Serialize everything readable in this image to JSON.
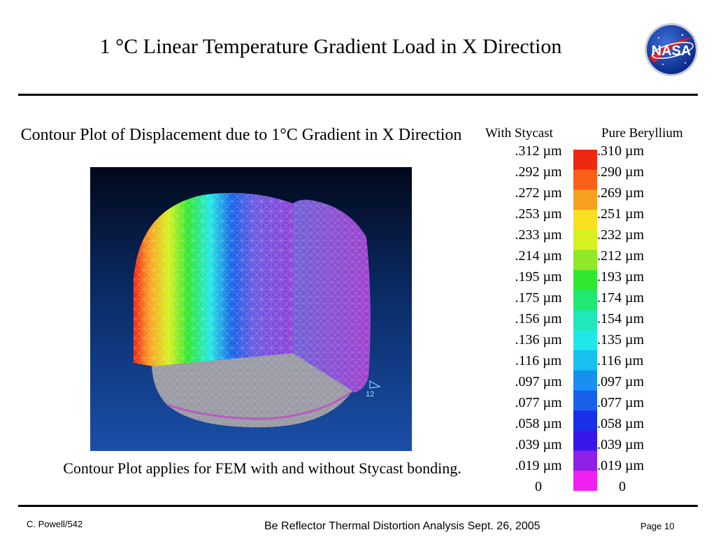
{
  "slide": {
    "title": "1 °C Linear Temperature Gradient Load in X Direction",
    "plot_title": "Contour Plot of Displacement due to 1°C Gradient in X Direction",
    "caption": "Contour Plot applies for FEM with and without Stycast bonding.",
    "plot_annotation": "12",
    "logo_text": "NASA"
  },
  "legend": {
    "left_header": "With Stycast",
    "right_header": "Pure Beryllium",
    "left_values": [
      ".312 µm",
      ".292 µm",
      ".272 µm",
      ".253 µm",
      ".233 µm",
      ".214 µm",
      ".195 µm",
      ".175 µm",
      ".156 µm",
      ".136 µm",
      ".116 µm",
      ".097 µm",
      ".077 µm",
      ".058 µm",
      ".039 µm",
      ".019 µm",
      "0"
    ],
    "right_values": [
      ".310 µm",
      ".290 µm",
      ".269 µm",
      ".251 µm",
      ".232 µm",
      ".212 µm",
      ".193 µm",
      ".174 µm",
      ".154 µm",
      ".135 µm",
      ".116 µm",
      ".097 µm",
      ".077 µm",
      ".058 µm",
      ".039 µm",
      ".019 µm",
      "0"
    ],
    "colors": [
      "#f02810",
      "#f86018",
      "#f8a020",
      "#f8e020",
      "#d8f020",
      "#90e828",
      "#30e830",
      "#20e870",
      "#20e8b8",
      "#20e8e8",
      "#18c0f0",
      "#1890f0",
      "#1860e8",
      "#1830e8",
      "#3818e8",
      "#9020e8",
      "#f020f0"
    ]
  },
  "footer": {
    "author": "C. Powell/542",
    "center": "Be Reflector Thermal Distortion Analysis   Sept. 26, 2005",
    "page": "Page 10"
  }
}
